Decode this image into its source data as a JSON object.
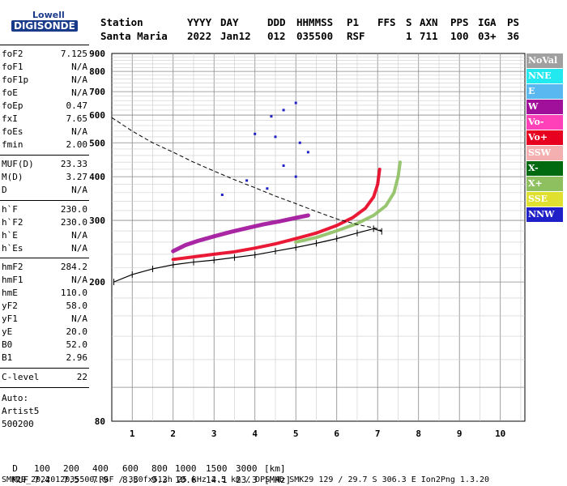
{
  "logo": {
    "top": "Lowell",
    "bottom": "DIGISONDE"
  },
  "header": {
    "labels": [
      "Station",
      "YYYY",
      "DAY",
      "DDD",
      "HHMMSS",
      "P1",
      "FFS",
      "S",
      "AXN",
      "PPS",
      "IGA",
      "PS"
    ],
    "station": "Santa Maria",
    "year": "2022",
    "day": "Jan12",
    "ddd": "012",
    "time": "035500",
    "p1": "RSF",
    "s": "1",
    "axn": "711",
    "pps": "100",
    "iga": "03+",
    "ps": "36"
  },
  "params": {
    "g1": [
      {
        "label": "foF2",
        "value": "7.125"
      },
      {
        "label": "foF1",
        "value": "N/A"
      },
      {
        "label": "foF1p",
        "value": "N/A"
      },
      {
        "label": "foE",
        "value": "N/A"
      },
      {
        "label": "foEp",
        "value": "0.47"
      },
      {
        "label": "fxI",
        "value": "7.65"
      },
      {
        "label": "foEs",
        "value": "N/A"
      },
      {
        "label": "fmin",
        "value": "2.00"
      }
    ],
    "g2": [
      {
        "label": "MUF(D)",
        "value": "23.33"
      },
      {
        "label": "M(D)",
        "value": "3.27"
      },
      {
        "label": "D",
        "value": "N/A"
      }
    ],
    "g3": [
      {
        "label": "h`F",
        "value": "230.0"
      },
      {
        "label": "h`F2",
        "value": "230.0"
      },
      {
        "label": "h`E",
        "value": "N/A"
      },
      {
        "label": "h`Es",
        "value": "N/A"
      }
    ],
    "g4": [
      {
        "label": "hmF2",
        "value": "284.2"
      },
      {
        "label": "hmF1",
        "value": "N/A"
      },
      {
        "label": "hmE",
        "value": "110.0"
      },
      {
        "label": "yF2",
        "value": "58.0"
      },
      {
        "label": "yF1",
        "value": "N/A"
      },
      {
        "label": "yE",
        "value": "20.0"
      },
      {
        "label": "B0",
        "value": "52.0"
      },
      {
        "label": "B1",
        "value": "2.96"
      }
    ],
    "g5": [
      {
        "label": "C-level",
        "value": "22"
      }
    ]
  },
  "autoscaling": {
    "line1": "Auto:",
    "line2": "Artist5",
    "line3": "500200"
  },
  "legend": [
    {
      "label": "NoVal",
      "bg": "#a0a0a0",
      "fg": "#ffffff"
    },
    {
      "label": "NNE",
      "bg": "#22e8f0",
      "fg": "#ffffff"
    },
    {
      "label": "E",
      "bg": "#5ab8f0",
      "fg": "#ffffff"
    },
    {
      "label": "W",
      "bg": "#a0109a",
      "fg": "#ffffff"
    },
    {
      "label": "Vo-",
      "bg": "#ff40b8",
      "fg": "#ffffff"
    },
    {
      "label": "Vo+",
      "bg": "#e80020",
      "fg": "#ffffff"
    },
    {
      "label": "SSW",
      "bg": "#f4b0b0",
      "fg": "#ffffff"
    },
    {
      "label": "X-",
      "bg": "#006a10",
      "fg": "#ffffff"
    },
    {
      "label": "X+",
      "bg": "#8ec060",
      "fg": "#ffffff"
    },
    {
      "label": "SSE",
      "bg": "#e0e030",
      "fg": "#ffffff"
    },
    {
      "label": "NNW",
      "bg": "#2020c8",
      "fg": "#ffffff"
    }
  ],
  "footer": {
    "d_label": "D",
    "d_values": [
      "100",
      "200",
      "400",
      "600",
      "800",
      "1000",
      "1500",
      "3000"
    ],
    "d_unit": "[km]",
    "muf_label": "MUF",
    "muf_values": [
      "7.4",
      "7.5",
      "7.9",
      "8.5",
      "9.3",
      "10.6",
      "14.1",
      "23.3"
    ],
    "muf_unit": "[MHz]",
    "info": "SMK29_2022012035500.RSF / 380fx512h 25 kHz 2.5 km / DPS-4D SMK29 129 / 29.7 S 306.3 E Ion2Png 1.3.20"
  },
  "chart_data": {
    "type": "scatter",
    "x_ticks": [
      1,
      2,
      3,
      4,
      5,
      6,
      7,
      8,
      9,
      10
    ],
    "y_ticks": [
      80,
      200,
      300,
      400,
      500,
      600,
      700,
      800,
      900
    ],
    "xlim": [
      0.5,
      10.6
    ],
    "ylim": [
      80,
      900
    ],
    "y_scale": "log",
    "grid": true,
    "series": [
      {
        "name": "Vo+",
        "points": [
          [
            2.0,
            232
          ],
          [
            2.5,
            236
          ],
          [
            3.0,
            240
          ],
          [
            3.5,
            244
          ],
          [
            4.0,
            250
          ],
          [
            4.5,
            257
          ],
          [
            5.0,
            266
          ],
          [
            5.5,
            276
          ],
          [
            6.0,
            290
          ],
          [
            6.4,
            306
          ],
          [
            6.7,
            325
          ],
          [
            6.9,
            350
          ],
          [
            7.0,
            380
          ],
          [
            7.05,
            420
          ]
        ]
      },
      {
        "name": "X+",
        "points": [
          [
            5.0,
            260
          ],
          [
            5.5,
            268
          ],
          [
            6.0,
            280
          ],
          [
            6.5,
            294
          ],
          [
            6.9,
            310
          ],
          [
            7.2,
            330
          ],
          [
            7.4,
            360
          ],
          [
            7.5,
            400
          ],
          [
            7.55,
            440
          ]
        ]
      },
      {
        "name": "W",
        "points": [
          [
            2.0,
            245
          ],
          [
            2.3,
            255
          ],
          [
            2.6,
            262
          ],
          [
            3.0,
            270
          ],
          [
            3.4,
            278
          ],
          [
            3.8,
            285
          ],
          [
            4.2,
            292
          ],
          [
            4.6,
            298
          ],
          [
            5.0,
            305
          ],
          [
            5.3,
            310
          ]
        ]
      },
      {
        "name": "NNW",
        "points": [
          [
            4.4,
            595
          ],
          [
            4.7,
            620
          ],
          [
            5.0,
            650
          ],
          [
            4.0,
            530
          ],
          [
            4.5,
            520
          ],
          [
            5.1,
            500
          ],
          [
            5.3,
            470
          ],
          [
            4.7,
            430
          ],
          [
            3.8,
            390
          ],
          [
            3.2,
            355
          ],
          [
            5.0,
            400
          ],
          [
            4.3,
            370
          ]
        ]
      }
    ]
  }
}
